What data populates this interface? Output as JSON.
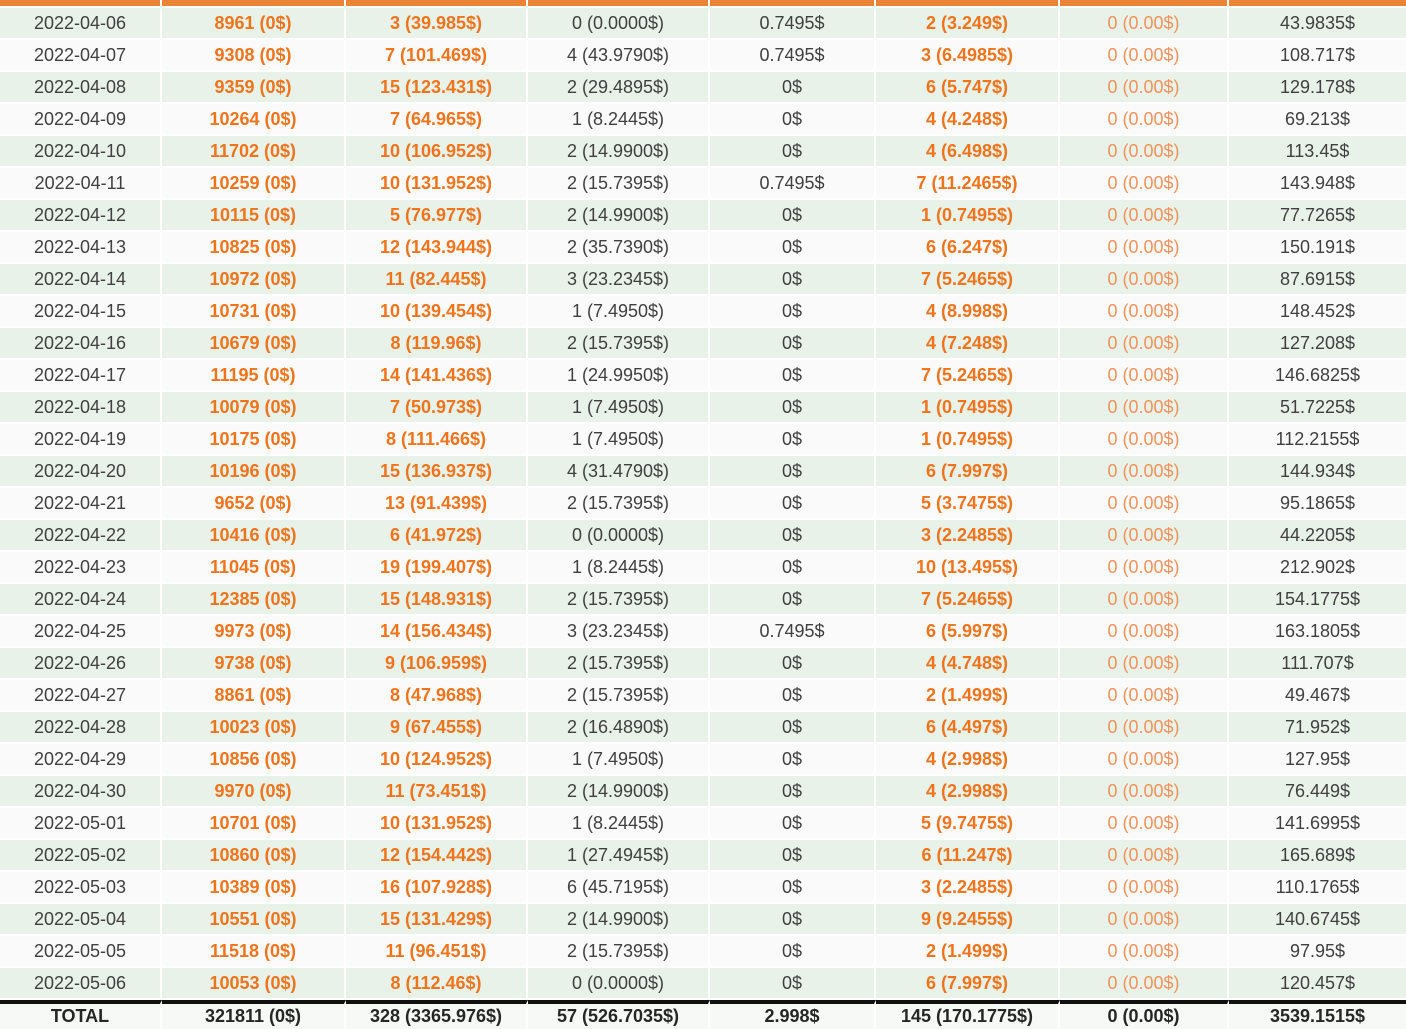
{
  "table": {
    "column_styles": [
      "plain",
      "orange-bold",
      "orange-bold",
      "plain",
      "plain",
      "orange-bold",
      "orange-light",
      "plain"
    ],
    "rows": [
      [
        "2022-04-06",
        "8961 (0$)",
        "3 (39.985$)",
        "0 (0.0000$)",
        "0.7495$",
        "2 (3.249$)",
        "0 (0.00$)",
        "43.9835$"
      ],
      [
        "2022-04-07",
        "9308 (0$)",
        "7 (101.469$)",
        "4 (43.9790$)",
        "0.7495$",
        "3 (6.4985$)",
        "0 (0.00$)",
        "108.717$"
      ],
      [
        "2022-04-08",
        "9359 (0$)",
        "15 (123.431$)",
        "2 (29.4895$)",
        "0$",
        "6 (5.747$)",
        "0 (0.00$)",
        "129.178$"
      ],
      [
        "2022-04-09",
        "10264 (0$)",
        "7 (64.965$)",
        "1 (8.2445$)",
        "0$",
        "4 (4.248$)",
        "0 (0.00$)",
        "69.213$"
      ],
      [
        "2022-04-10",
        "11702 (0$)",
        "10 (106.952$)",
        "2 (14.9900$)",
        "0$",
        "4 (6.498$)",
        "0 (0.00$)",
        "113.45$"
      ],
      [
        "2022-04-11",
        "10259 (0$)",
        "10 (131.952$)",
        "2 (15.7395$)",
        "0.7495$",
        "7 (11.2465$)",
        "0 (0.00$)",
        "143.948$"
      ],
      [
        "2022-04-12",
        "10115 (0$)",
        "5 (76.977$)",
        "2 (14.9900$)",
        "0$",
        "1 (0.7495$)",
        "0 (0.00$)",
        "77.7265$"
      ],
      [
        "2022-04-13",
        "10825 (0$)",
        "12 (143.944$)",
        "2 (35.7390$)",
        "0$",
        "6 (6.247$)",
        "0 (0.00$)",
        "150.191$"
      ],
      [
        "2022-04-14",
        "10972 (0$)",
        "11 (82.445$)",
        "3 (23.2345$)",
        "0$",
        "7 (5.2465$)",
        "0 (0.00$)",
        "87.6915$"
      ],
      [
        "2022-04-15",
        "10731 (0$)",
        "10 (139.454$)",
        "1 (7.4950$)",
        "0$",
        "4 (8.998$)",
        "0 (0.00$)",
        "148.452$"
      ],
      [
        "2022-04-16",
        "10679 (0$)",
        "8 (119.96$)",
        "2 (15.7395$)",
        "0$",
        "4 (7.248$)",
        "0 (0.00$)",
        "127.208$"
      ],
      [
        "2022-04-17",
        "11195 (0$)",
        "14 (141.436$)",
        "1 (24.9950$)",
        "0$",
        "7 (5.2465$)",
        "0 (0.00$)",
        "146.6825$"
      ],
      [
        "2022-04-18",
        "10079 (0$)",
        "7 (50.973$)",
        "1 (7.4950$)",
        "0$",
        "1 (0.7495$)",
        "0 (0.00$)",
        "51.7225$"
      ],
      [
        "2022-04-19",
        "10175 (0$)",
        "8 (111.466$)",
        "1 (7.4950$)",
        "0$",
        "1 (0.7495$)",
        "0 (0.00$)",
        "112.2155$"
      ],
      [
        "2022-04-20",
        "10196 (0$)",
        "15 (136.937$)",
        "4 (31.4790$)",
        "0$",
        "6 (7.997$)",
        "0 (0.00$)",
        "144.934$"
      ],
      [
        "2022-04-21",
        "9652 (0$)",
        "13 (91.439$)",
        "2 (15.7395$)",
        "0$",
        "5 (3.7475$)",
        "0 (0.00$)",
        "95.1865$"
      ],
      [
        "2022-04-22",
        "10416 (0$)",
        "6 (41.972$)",
        "0 (0.0000$)",
        "0$",
        "3 (2.2485$)",
        "0 (0.00$)",
        "44.2205$"
      ],
      [
        "2022-04-23",
        "11045 (0$)",
        "19 (199.407$)",
        "1 (8.2445$)",
        "0$",
        "10 (13.495$)",
        "0 (0.00$)",
        "212.902$"
      ],
      [
        "2022-04-24",
        "12385 (0$)",
        "15 (148.931$)",
        "2 (15.7395$)",
        "0$",
        "7 (5.2465$)",
        "0 (0.00$)",
        "154.1775$"
      ],
      [
        "2022-04-25",
        "9973 (0$)",
        "14 (156.434$)",
        "3 (23.2345$)",
        "0.7495$",
        "6 (5.997$)",
        "0 (0.00$)",
        "163.1805$"
      ],
      [
        "2022-04-26",
        "9738 (0$)",
        "9 (106.959$)",
        "2 (15.7395$)",
        "0$",
        "4 (4.748$)",
        "0 (0.00$)",
        "111.707$"
      ],
      [
        "2022-04-27",
        "8861 (0$)",
        "8 (47.968$)",
        "2 (15.7395$)",
        "0$",
        "2 (1.499$)",
        "0 (0.00$)",
        "49.467$"
      ],
      [
        "2022-04-28",
        "10023 (0$)",
        "9 (67.455$)",
        "2 (16.4890$)",
        "0$",
        "6 (4.497$)",
        "0 (0.00$)",
        "71.952$"
      ],
      [
        "2022-04-29",
        "10856 (0$)",
        "10 (124.952$)",
        "1 (7.4950$)",
        "0$",
        "4 (2.998$)",
        "0 (0.00$)",
        "127.95$"
      ],
      [
        "2022-04-30",
        "9970 (0$)",
        "11 (73.451$)",
        "2 (14.9900$)",
        "0$",
        "4 (2.998$)",
        "0 (0.00$)",
        "76.449$"
      ],
      [
        "2022-05-01",
        "10701 (0$)",
        "10 (131.952$)",
        "1 (8.2445$)",
        "0$",
        "5 (9.7475$)",
        "0 (0.00$)",
        "141.6995$"
      ],
      [
        "2022-05-02",
        "10860 (0$)",
        "12 (154.442$)",
        "1 (27.4945$)",
        "0$",
        "6 (11.247$)",
        "0 (0.00$)",
        "165.689$"
      ],
      [
        "2022-05-03",
        "10389 (0$)",
        "16 (107.928$)",
        "6 (45.7195$)",
        "0$",
        "3 (2.2485$)",
        "0 (0.00$)",
        "110.1765$"
      ],
      [
        "2022-05-04",
        "10551 (0$)",
        "15 (131.429$)",
        "2 (14.9900$)",
        "0$",
        "9 (9.2455$)",
        "0 (0.00$)",
        "140.6745$"
      ],
      [
        "2022-05-05",
        "11518 (0$)",
        "11 (96.451$)",
        "2 (15.7395$)",
        "0$",
        "2 (1.499$)",
        "0 (0.00$)",
        "97.95$"
      ],
      [
        "2022-05-06",
        "10053 (0$)",
        "8 (112.46$)",
        "0 (0.0000$)",
        "0$",
        "6 (7.997$)",
        "0 (0.00$)",
        "120.457$"
      ]
    ],
    "total_row": [
      "TOTAL",
      "321811 (0$)",
      "328 (3365.976$)",
      "57 (526.7035$)",
      "2.998$",
      "145 (170.1775$)",
      "0 (0.00$)",
      "3539.1515$"
    ]
  },
  "colors": {
    "header_bar": "#EA8437",
    "orange_bold_text": "#F0741C",
    "orange_light_text": "#F2925C",
    "dark_text": "#404040",
    "row_green": "#E8F2E9",
    "row_white": "#FAFAFA",
    "total_rule": "#101010",
    "total_background": "#F7F9F7"
  }
}
